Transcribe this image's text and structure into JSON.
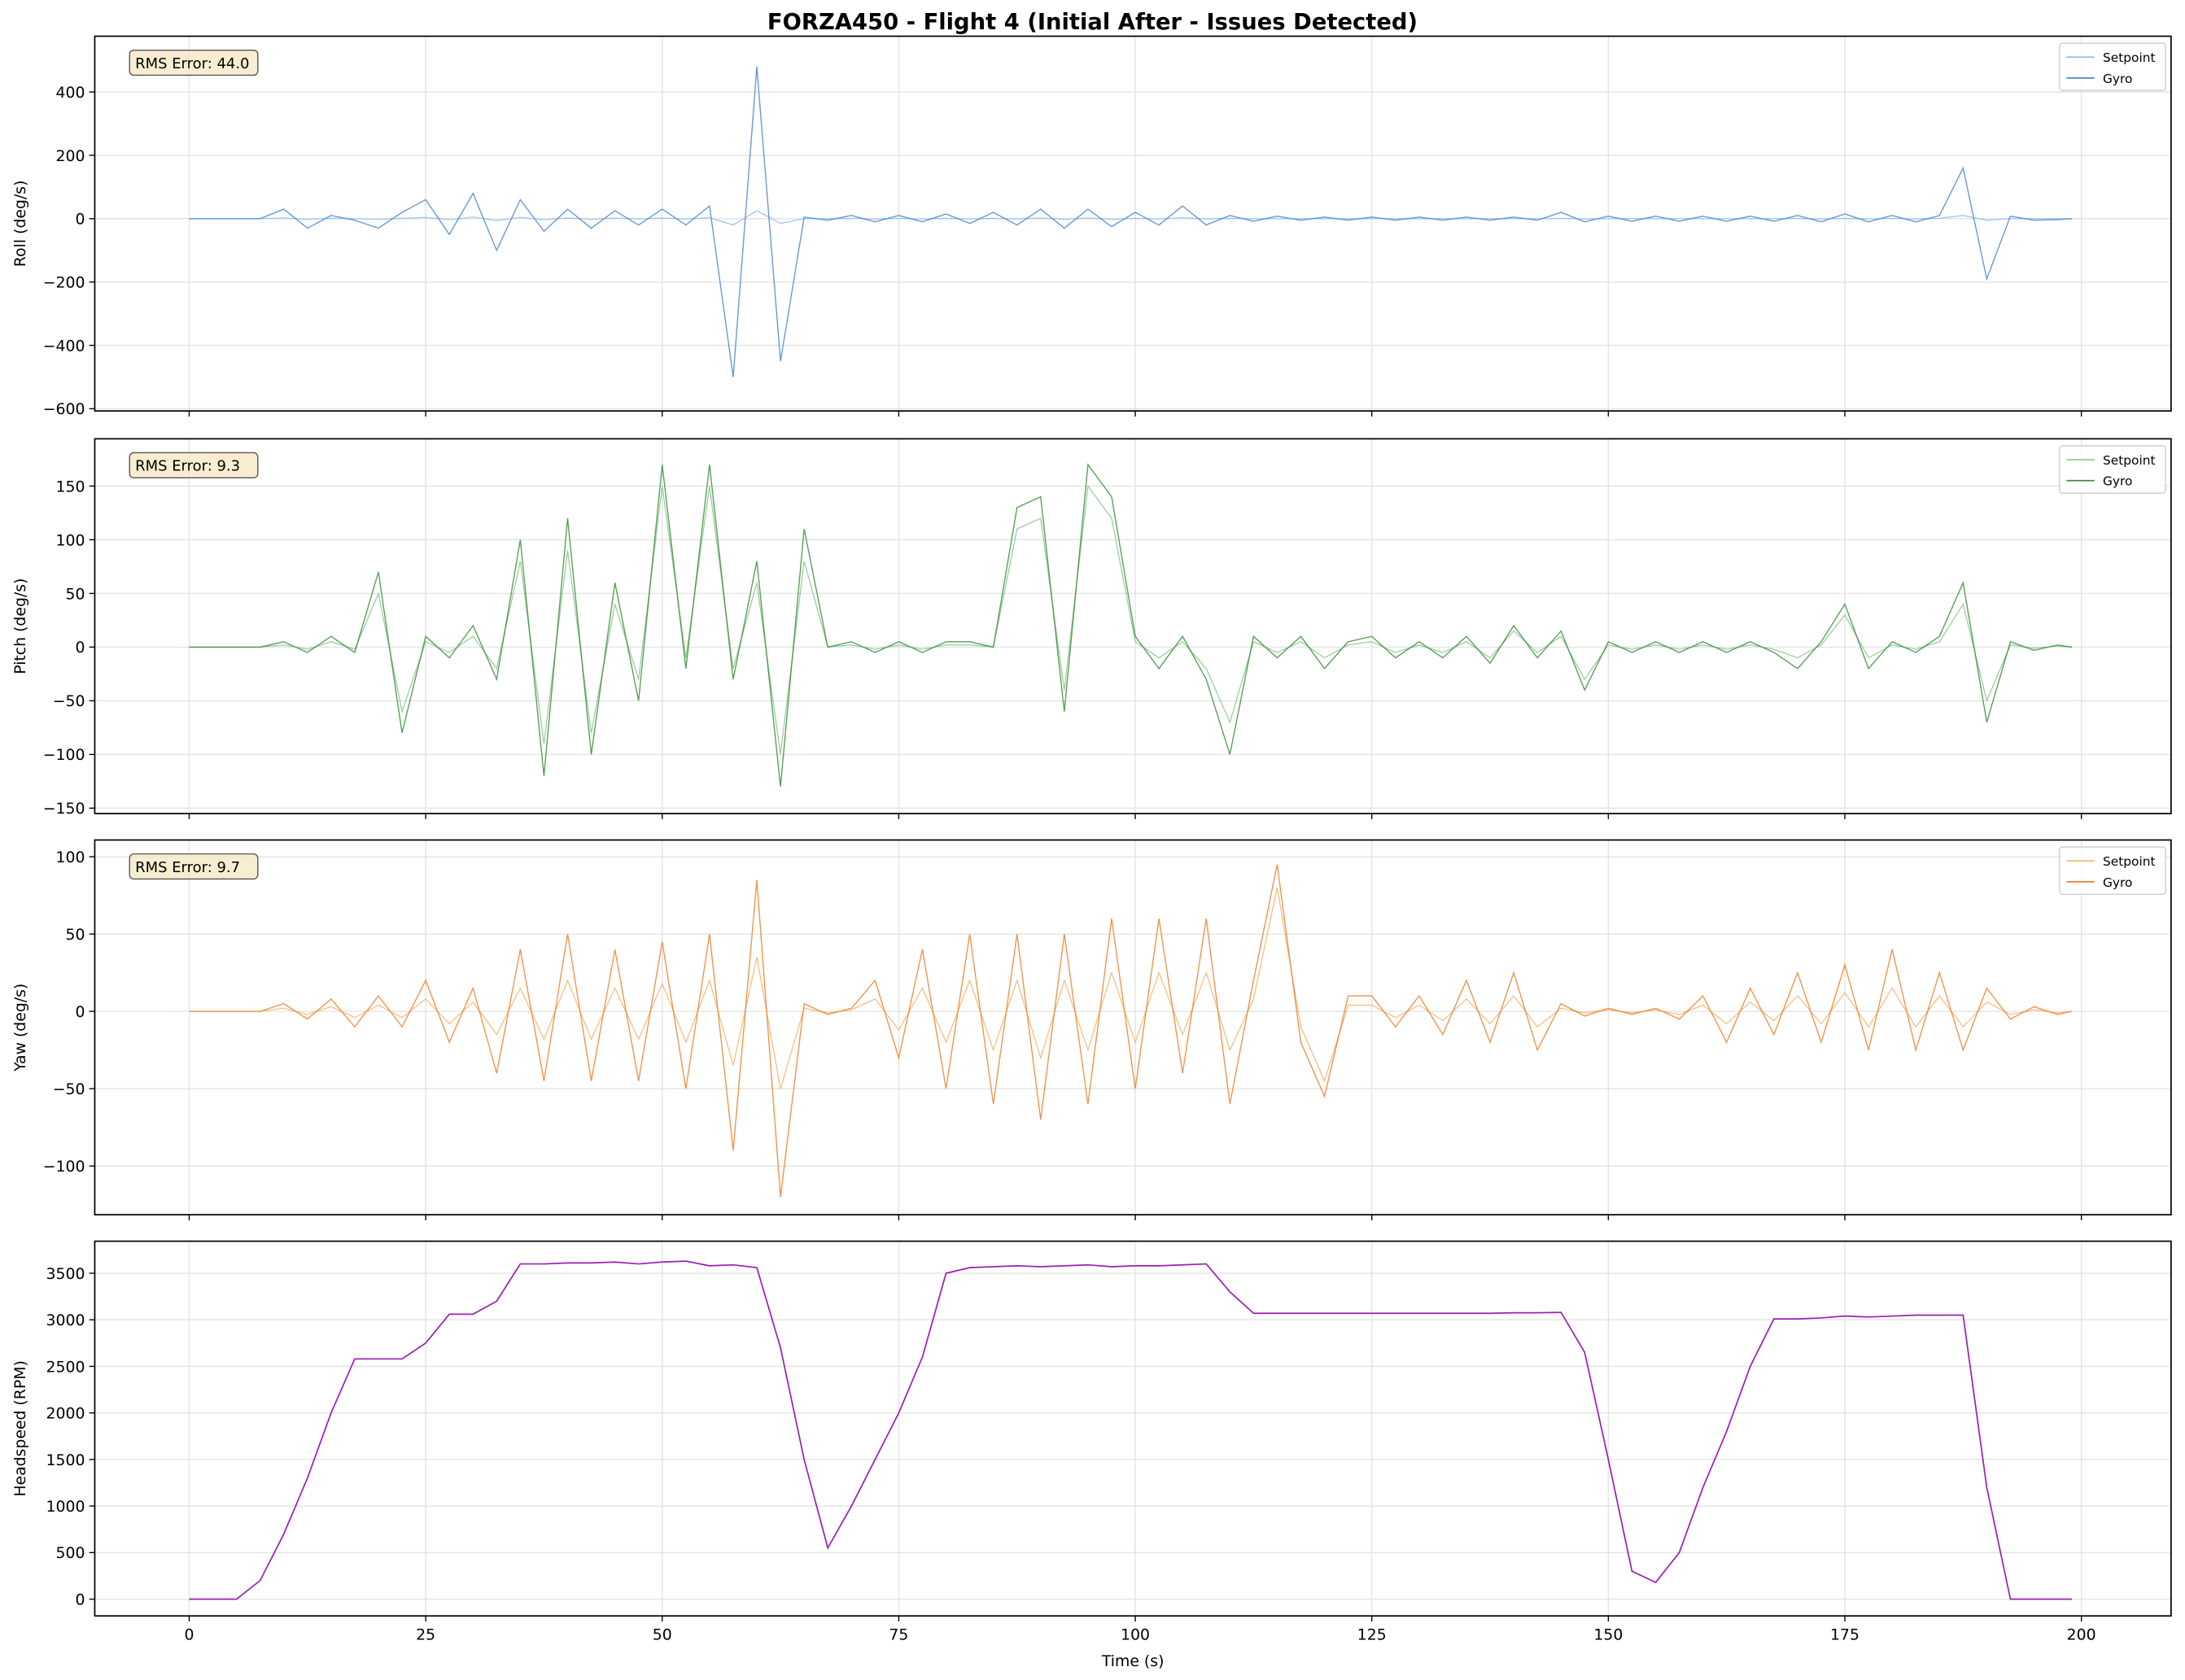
{
  "title": "FORZA450 - Flight 4 (Initial After - Issues Detected)",
  "chart_data": [
    {
      "type": "line",
      "ylabel": "Roll (deg/s)",
      "annotation": "RMS Error: 44.0",
      "legend": "upper right",
      "grid": true,
      "xlim": [
        -9.98,
        209.48
      ],
      "xticks": [
        0,
        25,
        50,
        75,
        100,
        125,
        150,
        175,
        200
      ],
      "ylim": [
        -607,
        576
      ],
      "yticks": [
        {
          "value": -600,
          "label": "−600"
        },
        {
          "value": -400,
          "label": "−400"
        },
        {
          "value": -200,
          "label": "−200"
        },
        0,
        200,
        400
      ],
      "x": [
        0,
        2.5,
        5,
        7.5,
        10,
        12.5,
        15,
        17.5,
        20,
        22.5,
        25,
        27.5,
        30,
        32.5,
        35,
        37.5,
        40,
        42.5,
        45,
        47.5,
        50,
        52.5,
        55,
        57.5,
        60,
        62.5,
        65,
        67.5,
        70,
        72.5,
        75,
        77.5,
        80,
        82.5,
        85,
        87.5,
        90,
        92.5,
        95,
        97.5,
        100,
        102.5,
        105,
        107.5,
        110,
        112.5,
        115,
        117.5,
        120,
        122.5,
        125,
        127.5,
        130,
        132.5,
        135,
        137.5,
        140,
        142.5,
        145,
        147.5,
        150,
        152.5,
        155,
        157.5,
        160,
        162.5,
        165,
        167.5,
        170,
        172.5,
        175,
        177.5,
        180,
        182.5,
        185,
        187.5,
        190,
        192.5,
        195,
        197.5,
        199
      ],
      "series": [
        {
          "name": "Setpoint",
          "color": "#8fbbe8",
          "values": [
            0,
            0,
            0,
            0,
            2,
            -2,
            1,
            0,
            -2,
            1,
            4,
            -3,
            5,
            -6,
            4,
            -3,
            2,
            -2,
            2,
            -1,
            2,
            -1,
            3,
            -20,
            25,
            -15,
            0,
            0,
            1,
            -1,
            1,
            -1,
            1,
            -1,
            1,
            -1,
            2,
            -2,
            2,
            -2,
            1,
            -1,
            3,
            -1,
            1,
            0,
            0,
            0,
            0,
            0,
            0,
            0,
            0,
            0,
            0,
            0,
            0,
            0,
            1,
            -1,
            0,
            0,
            0,
            0,
            0,
            0,
            0,
            0,
            1,
            -1,
            1,
            -1,
            1,
            -1,
            1,
            10,
            -5,
            0,
            0,
            0,
            0
          ]
        },
        {
          "name": "Gyro",
          "color": "#4a86cf",
          "values": [
            0,
            0,
            0,
            0,
            30,
            -30,
            10,
            -5,
            -30,
            20,
            60,
            -50,
            80,
            -100,
            60,
            -40,
            30,
            -30,
            25,
            -20,
            30,
            -20,
            40,
            -500,
            480,
            -450,
            5,
            -5,
            10,
            -10,
            10,
            -10,
            15,
            -15,
            20,
            -20,
            30,
            -30,
            30,
            -25,
            20,
            -20,
            40,
            -20,
            10,
            -8,
            8,
            -5,
            5,
            -5,
            5,
            -5,
            5,
            -5,
            5,
            -5,
            5,
            -5,
            20,
            -10,
            8,
            -8,
            8,
            -8,
            8,
            -8,
            8,
            -8,
            10,
            -10,
            15,
            -10,
            10,
            -10,
            10,
            160,
            -190,
            8,
            -5,
            -3,
            0
          ]
        }
      ]
    },
    {
      "type": "line",
      "ylabel": "Pitch (deg/s)",
      "annotation": "RMS Error: 9.3",
      "legend": "upper right",
      "grid": true,
      "xlim": [
        -9.98,
        209.48
      ],
      "xticks": [
        0,
        25,
        50,
        75,
        100,
        125,
        150,
        175,
        200
      ],
      "ylim": [
        -155,
        194
      ],
      "yticks": [
        {
          "value": -150,
          "label": "−150"
        },
        {
          "value": -100,
          "label": "−100"
        },
        {
          "value": -50,
          "label": "−50"
        },
        0,
        50,
        100,
        150
      ],
      "x": [
        0,
        2.5,
        5,
        7.5,
        10,
        12.5,
        15,
        17.5,
        20,
        22.5,
        25,
        27.5,
        30,
        32.5,
        35,
        37.5,
        40,
        42.5,
        45,
        47.5,
        50,
        52.5,
        55,
        57.5,
        60,
        62.5,
        65,
        67.5,
        70,
        72.5,
        75,
        77.5,
        80,
        82.5,
        85,
        87.5,
        90,
        92.5,
        95,
        97.5,
        100,
        102.5,
        105,
        107.5,
        110,
        112.5,
        115,
        117.5,
        120,
        122.5,
        125,
        127.5,
        130,
        132.5,
        135,
        137.5,
        140,
        142.5,
        145,
        147.5,
        150,
        152.5,
        155,
        157.5,
        160,
        162.5,
        165,
        167.5,
        170,
        172.5,
        175,
        177.5,
        180,
        182.5,
        185,
        187.5,
        190,
        192.5,
        195,
        197.5,
        199
      ],
      "series": [
        {
          "name": "Setpoint",
          "color": "#8cc48c",
          "values": [
            0,
            0,
            0,
            0,
            2,
            -2,
            5,
            -2,
            50,
            -60,
            5,
            -5,
            10,
            -20,
            80,
            -90,
            90,
            -80,
            40,
            -30,
            150,
            -10,
            150,
            -20,
            60,
            -100,
            80,
            0,
            2,
            -2,
            2,
            -2,
            2,
            2,
            0,
            110,
            120,
            -40,
            150,
            120,
            5,
            -10,
            5,
            -20,
            -70,
            5,
            -5,
            5,
            -10,
            2,
            5,
            -5,
            2,
            -5,
            5,
            -10,
            15,
            -5,
            10,
            -30,
            2,
            -2,
            2,
            -2,
            2,
            -2,
            2,
            -2,
            -10,
            2,
            30,
            -10,
            2,
            -2,
            5,
            40,
            -50,
            2,
            -1,
            1,
            0
          ]
        },
        {
          "name": "Gyro",
          "color": "#3a8f3a",
          "values": [
            0,
            0,
            0,
            0,
            5,
            -5,
            10,
            -5,
            70,
            -80,
            10,
            -10,
            20,
            -30,
            100,
            -120,
            120,
            -100,
            60,
            -50,
            170,
            -20,
            170,
            -30,
            80,
            -130,
            110,
            0,
            5,
            -5,
            5,
            -5,
            5,
            5,
            0,
            130,
            140,
            -60,
            170,
            140,
            10,
            -20,
            10,
            -30,
            -100,
            10,
            -10,
            10,
            -20,
            5,
            10,
            -10,
            5,
            -10,
            10,
            -15,
            20,
            -10,
            15,
            -40,
            5,
            -5,
            5,
            -5,
            5,
            -5,
            5,
            -5,
            -20,
            5,
            40,
            -20,
            5,
            -5,
            10,
            60,
            -70,
            5,
            -3,
            2,
            0
          ]
        }
      ]
    },
    {
      "type": "line",
      "ylabel": "Yaw (deg/s)",
      "annotation": "RMS Error: 9.7",
      "legend": "upper right",
      "grid": true,
      "xlim": [
        -9.98,
        209.48
      ],
      "xticks": [
        0,
        25,
        50,
        75,
        100,
        125,
        150,
        175,
        200
      ],
      "ylim": [
        -131.5,
        110.8
      ],
      "yticks": [
        {
          "value": -100,
          "label": "−100"
        },
        {
          "value": -50,
          "label": "−50"
        },
        0,
        50,
        100
      ],
      "x": [
        0,
        2.5,
        5,
        7.5,
        10,
        12.5,
        15,
        17.5,
        20,
        22.5,
        25,
        27.5,
        30,
        32.5,
        35,
        37.5,
        40,
        42.5,
        45,
        47.5,
        50,
        52.5,
        55,
        57.5,
        60,
        62.5,
        65,
        67.5,
        70,
        72.5,
        75,
        77.5,
        80,
        82.5,
        85,
        87.5,
        90,
        92.5,
        95,
        97.5,
        100,
        102.5,
        105,
        107.5,
        110,
        112.5,
        115,
        117.5,
        120,
        122.5,
        125,
        127.5,
        130,
        132.5,
        135,
        137.5,
        140,
        142.5,
        145,
        147.5,
        150,
        152.5,
        155,
        157.5,
        160,
        162.5,
        165,
        167.5,
        170,
        172.5,
        175,
        177.5,
        180,
        182.5,
        185,
        187.5,
        190,
        192.5,
        195,
        197.5,
        199
      ],
      "series": [
        {
          "name": "Setpoint",
          "color": "#f6b26b",
          "values": [
            0,
            0,
            0,
            0,
            2,
            -2,
            3,
            -4,
            4,
            -4,
            8,
            -8,
            6,
            -15,
            15,
            -18,
            20,
            -18,
            15,
            -18,
            18,
            -20,
            20,
            -35,
            35,
            -50,
            2,
            -1,
            1,
            8,
            -12,
            15,
            -20,
            20,
            -25,
            20,
            -30,
            20,
            -25,
            25,
            -20,
            25,
            -15,
            25,
            -25,
            8,
            80,
            -10,
            -45,
            4,
            4,
            -4,
            4,
            -6,
            8,
            -8,
            10,
            -10,
            2,
            -1,
            1,
            -1,
            1,
            -2,
            4,
            -8,
            6,
            -6,
            10,
            -8,
            12,
            -10,
            15,
            -10,
            10,
            -10,
            6,
            -2,
            1,
            -1,
            0
          ]
        },
        {
          "name": "Gyro",
          "color": "#f07f2a",
          "values": [
            0,
            0,
            0,
            0,
            5,
            -5,
            8,
            -10,
            10,
            -10,
            20,
            -20,
            15,
            -40,
            40,
            -45,
            50,
            -45,
            40,
            -45,
            45,
            -50,
            50,
            -90,
            85,
            -120,
            5,
            -2,
            2,
            20,
            -30,
            40,
            -50,
            50,
            -60,
            50,
            -70,
            50,
            -60,
            60,
            -50,
            60,
            -40,
            60,
            -60,
            20,
            95,
            -20,
            -55,
            10,
            10,
            -10,
            10,
            -15,
            20,
            -20,
            25,
            -25,
            5,
            -3,
            2,
            -2,
            2,
            -5,
            10,
            -20,
            15,
            -15,
            25,
            -20,
            30,
            -25,
            40,
            -25,
            25,
            -25,
            15,
            -5,
            3,
            -2,
            0
          ]
        }
      ]
    },
    {
      "type": "line",
      "ylabel": "Headspeed (RPM)",
      "xlabel": "Time (s)",
      "grid": true,
      "color": "#9b1fb5",
      "xlim": [
        -9.98,
        209.48
      ],
      "xticks": [
        0,
        25,
        50,
        75,
        100,
        125,
        150,
        175,
        200
      ],
      "ylim": [
        -180,
        3844
      ],
      "yticks": [
        0,
        500,
        1000,
        1500,
        2000,
        2500,
        3000,
        3500
      ],
      "x": [
        0,
        2.5,
        5,
        7.5,
        10,
        12.5,
        15,
        17.5,
        20,
        22.5,
        25,
        27.5,
        30,
        32.5,
        35,
        37.5,
        40,
        42.5,
        45,
        47.5,
        50,
        52.5,
        55,
        57.5,
        60,
        62.5,
        65,
        67.5,
        70,
        72.5,
        75,
        77.5,
        80,
        82.5,
        85,
        87.5,
        90,
        92.5,
        95,
        97.5,
        100,
        102.5,
        105,
        107.5,
        110,
        112.5,
        115,
        117.5,
        120,
        122.5,
        125,
        127.5,
        130,
        132.5,
        135,
        137.5,
        140,
        142.5,
        145,
        147.5,
        150,
        152.5,
        155,
        157.5,
        160,
        162.5,
        165,
        167.5,
        170,
        172.5,
        175,
        177.5,
        180,
        182.5,
        185,
        187.5,
        190,
        192.5,
        195,
        197.5,
        199
      ],
      "values": [
        0,
        0,
        0,
        200,
        700,
        1300,
        2000,
        2580,
        2580,
        2580,
        2750,
        3060,
        3060,
        3200,
        3600,
        3600,
        3610,
        3610,
        3620,
        3600,
        3620,
        3630,
        3580,
        3590,
        3560,
        2700,
        1500,
        550,
        1000,
        1500,
        2000,
        2600,
        3500,
        3560,
        3570,
        3580,
        3570,
        3580,
        3590,
        3570,
        3580,
        3580,
        3590,
        3600,
        3300,
        3070,
        3070,
        3070,
        3070,
        3070,
        3070,
        3070,
        3070,
        3070,
        3070,
        3070,
        3075,
        3075,
        3080,
        2650,
        1500,
        300,
        180,
        500,
        1200,
        1800,
        2500,
        3010,
        3010,
        3020,
        3040,
        3030,
        3040,
        3050,
        3050,
        3050,
        1200,
        0,
        0,
        0,
        0
      ]
    }
  ]
}
